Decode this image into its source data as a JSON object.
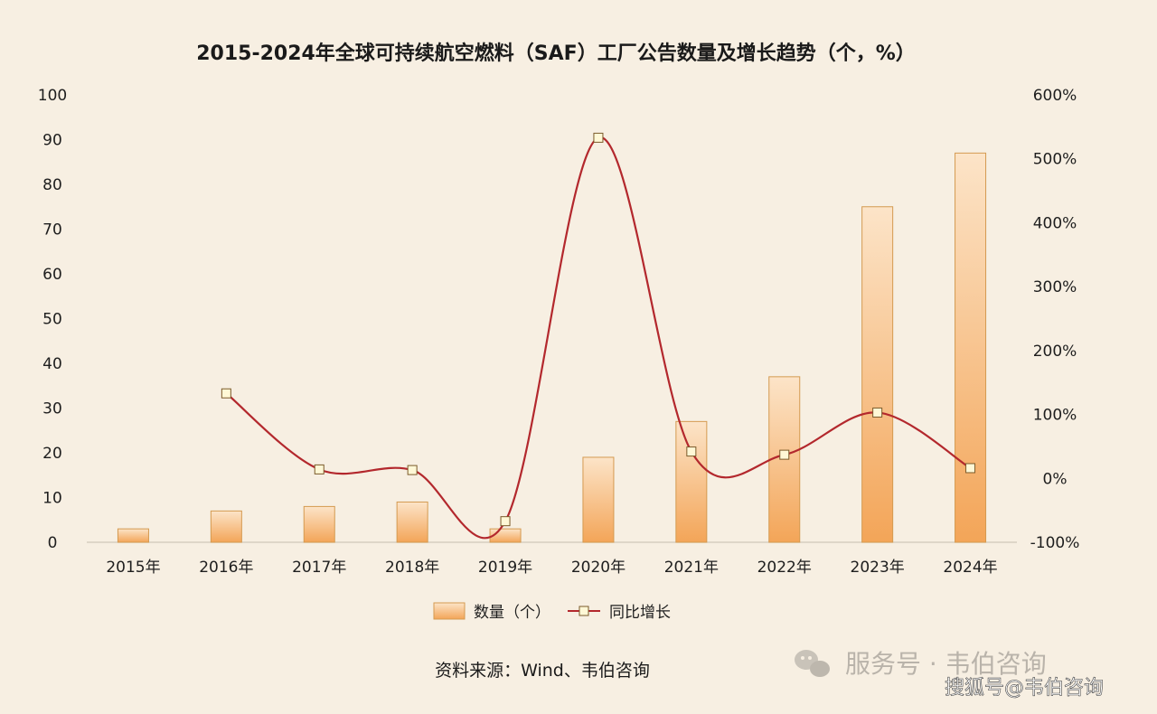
{
  "chart_data": {
    "type": "bar",
    "title": "2015-2024年全球可持续航空燃料（SAF）工厂公告数量及增长趋势（个，%）",
    "categories": [
      "2015年",
      "2016年",
      "2017年",
      "2018年",
      "2019年",
      "2020年",
      "2021年",
      "2022年",
      "2023年",
      "2024年"
    ],
    "series": [
      {
        "name": "数量（个）",
        "type": "bar",
        "axis": "left",
        "values": [
          3,
          7,
          8,
          9,
          3,
          19,
          27,
          37,
          75,
          87
        ]
      },
      {
        "name": "同比增长",
        "type": "line",
        "axis": "right",
        "values": [
          null,
          133,
          14,
          13,
          -67,
          533,
          42,
          37,
          103,
          16
        ]
      }
    ],
    "y_left": {
      "ylim": [
        0,
        100
      ],
      "ticks": [
        "0",
        "10",
        "20",
        "30",
        "40",
        "50",
        "60",
        "70",
        "80",
        "90",
        "100"
      ]
    },
    "y_right": {
      "ylim": [
        -100,
        600
      ],
      "ticks": [
        "-100%",
        "0%",
        "100%",
        "200%",
        "300%",
        "400%",
        "500%",
        "600%"
      ]
    },
    "grid": false,
    "legend": "bottom-center",
    "colors": {
      "bar": "#f6b977",
      "bar_edge": "#d49a50",
      "line": "#b3282d",
      "marker": "#fff8d6"
    }
  },
  "source_text": "资料来源：Wind、韦伯咨询",
  "watermark": {
    "line1": "服务号 · 韦伯咨询",
    "line2": "搜狐号@韦伯咨询"
  }
}
